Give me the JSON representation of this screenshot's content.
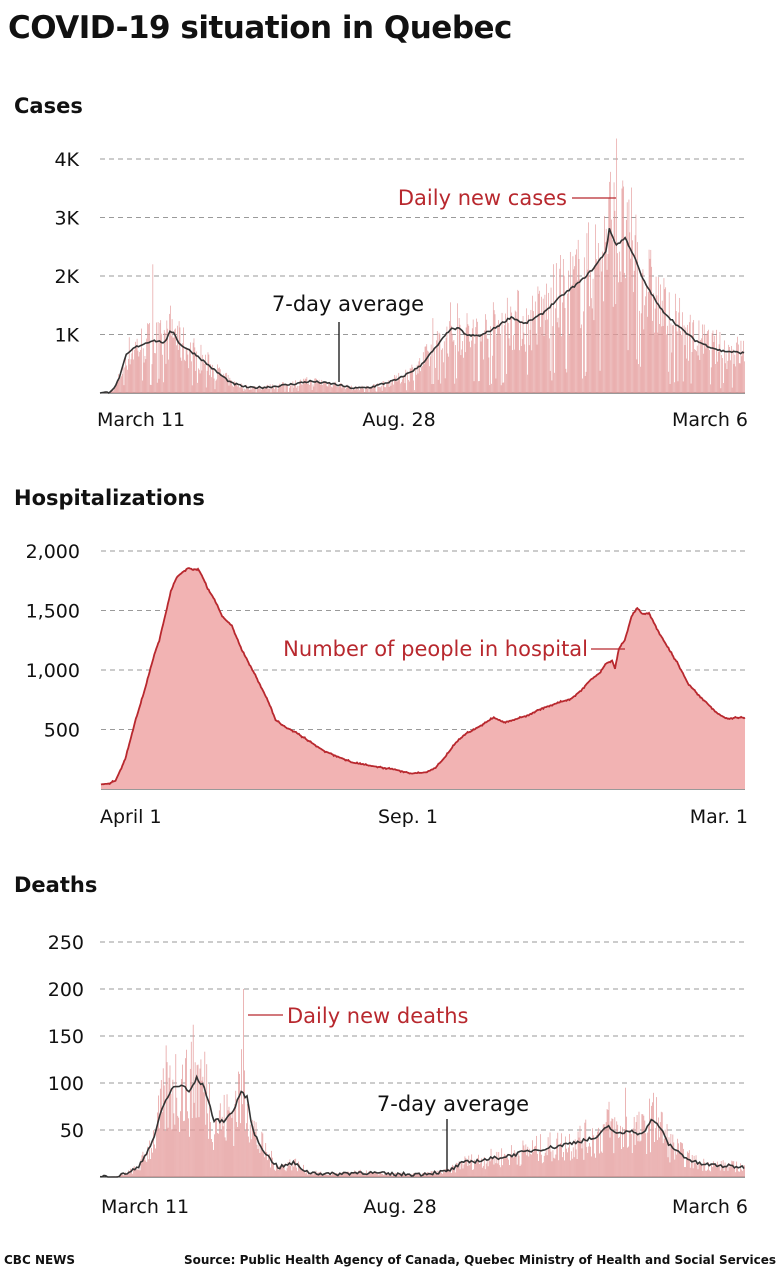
{
  "title": "COVID-19 situation in Quebec",
  "footer": {
    "brand": "CBC NEWS",
    "source": "Source: Public Health Agency of Canada, Quebec Ministry of Health and Social Services"
  },
  "colors": {
    "bar": "#e49a9a",
    "area_fill": "#f2b3b3",
    "area_line": "#b8282e",
    "avg_line": "#333333",
    "annotation_red": "#b8282e",
    "annotation_black": "#111111"
  },
  "chart_data": [
    {
      "id": "cases",
      "type": "bar",
      "title": "Cases",
      "x_tick_labels": [
        "March 11",
        "Aug. 28",
        "March 6"
      ],
      "y_tick_labels": [
        "1K",
        "2K",
        "3K",
        "4K"
      ],
      "y_ticks": [
        1000,
        2000,
        3000,
        4000
      ],
      "ylim": [
        0,
        4400
      ],
      "grid": true,
      "annotations": [
        "Daily new cases",
        "7-day average"
      ],
      "series": [
        {
          "kind": "bars",
          "name": "Daily new cases"
        },
        {
          "kind": "line",
          "name": "7-day average"
        }
      ],
      "avg_keyframes": [
        [
          0,
          0
        ],
        [
          10,
          10
        ],
        [
          18,
          120
        ],
        [
          24,
          350
        ],
        [
          30,
          650
        ],
        [
          40,
          780
        ],
        [
          50,
          840
        ],
        [
          60,
          900
        ],
        [
          75,
          860
        ],
        [
          80,
          1060
        ],
        [
          85,
          1030
        ],
        [
          90,
          850
        ],
        [
          110,
          650
        ],
        [
          130,
          400
        ],
        [
          150,
          170
        ],
        [
          170,
          90
        ],
        [
          190,
          100
        ],
        [
          215,
          140
        ],
        [
          240,
          200
        ],
        [
          265,
          160
        ],
        [
          290,
          80
        ],
        [
          310,
          100
        ],
        [
          340,
          230
        ],
        [
          365,
          450
        ],
        [
          385,
          800
        ],
        [
          400,
          1090
        ],
        [
          410,
          1100
        ],
        [
          420,
          980
        ],
        [
          435,
          980
        ],
        [
          450,
          1100
        ],
        [
          470,
          1300
        ],
        [
          485,
          1180
        ],
        [
          505,
          1350
        ],
        [
          525,
          1630
        ],
        [
          550,
          1920
        ],
        [
          565,
          2150
        ],
        [
          578,
          2420
        ],
        [
          582,
          2800
        ],
        [
          590,
          2530
        ],
        [
          600,
          2650
        ],
        [
          610,
          2350
        ],
        [
          620,
          1950
        ],
        [
          640,
          1450
        ],
        [
          660,
          1150
        ],
        [
          680,
          900
        ],
        [
          695,
          800
        ],
        [
          710,
          720
        ],
        [
          725,
          700
        ],
        [
          736,
          680
        ]
      ],
      "spikes": [
        [
          60,
          2200
        ],
        [
          590,
          4350
        ],
        [
          612,
          3050
        ],
        [
          380,
          1280
        ],
        [
          88,
          1150
        ]
      ]
    },
    {
      "id": "hospitalizations",
      "type": "area",
      "title": "Hospitalizations",
      "x_tick_labels": [
        "April 1",
        "Sep. 1",
        "Mar. 1"
      ],
      "y_tick_labels": [
        "500",
        "1,000",
        "1,500",
        "2,000"
      ],
      "y_ticks": [
        500,
        1000,
        1500,
        2000
      ],
      "ylim": [
        0,
        2050
      ],
      "grid": true,
      "annotations": [
        "Number of people in hospital"
      ],
      "series": [
        {
          "name": "Number of people in hospital",
          "keyframes": [
            [
              0,
              40
            ],
            [
              8,
              45
            ],
            [
              15,
              70
            ],
            [
              25,
              250
            ],
            [
              35,
              560
            ],
            [
              45,
              830
            ],
            [
              55,
              1130
            ],
            [
              60,
              1250
            ],
            [
              66,
              1450
            ],
            [
              72,
              1660
            ],
            [
              78,
              1780
            ],
            [
              84,
              1820
            ],
            [
              90,
              1860
            ],
            [
              95,
              1840
            ],
            [
              100,
              1850
            ],
            [
              105,
              1780
            ],
            [
              110,
              1680
            ],
            [
              115,
              1620
            ],
            [
              120,
              1540
            ],
            [
              125,
              1450
            ],
            [
              135,
              1370
            ],
            [
              145,
              1170
            ],
            [
              155,
              1020
            ],
            [
              165,
              860
            ],
            [
              175,
              690
            ],
            [
              180,
              580
            ],
            [
              190,
              520
            ],
            [
              200,
              480
            ],
            [
              215,
              400
            ],
            [
              230,
              320
            ],
            [
              245,
              270
            ],
            [
              260,
              220
            ],
            [
              275,
              200
            ],
            [
              290,
              180
            ],
            [
              305,
              160
            ],
            [
              320,
              130
            ],
            [
              335,
              140
            ],
            [
              345,
              180
            ],
            [
              355,
              270
            ],
            [
              365,
              380
            ],
            [
              375,
              460
            ],
            [
              385,
              500
            ],
            [
              395,
              550
            ],
            [
              405,
              600
            ],
            [
              415,
              560
            ],
            [
              425,
              580
            ],
            [
              440,
              620
            ],
            [
              455,
              680
            ],
            [
              470,
              720
            ],
            [
              485,
              760
            ],
            [
              495,
              830
            ],
            [
              505,
              920
            ],
            [
              515,
              980
            ],
            [
              520,
              1050
            ],
            [
              527,
              1080
            ],
            [
              530,
              1010
            ],
            [
              534,
              1180
            ],
            [
              540,
              1250
            ],
            [
              547,
              1450
            ],
            [
              553,
              1520
            ],
            [
              558,
              1470
            ],
            [
              565,
              1480
            ],
            [
              575,
              1320
            ],
            [
              585,
              1180
            ],
            [
              595,
              1050
            ],
            [
              605,
              890
            ],
            [
              615,
              800
            ],
            [
              625,
              720
            ],
            [
              635,
              640
            ],
            [
              645,
              590
            ],
            [
              655,
              600
            ],
            [
              664,
              600
            ]
          ]
        }
      ]
    },
    {
      "id": "deaths",
      "type": "bar",
      "title": "Deaths",
      "x_tick_labels": [
        "March 11",
        "Aug. 28",
        "March 6"
      ],
      "y_tick_labels": [
        "50",
        "100",
        "150",
        "200",
        "250"
      ],
      "y_ticks": [
        50,
        100,
        150,
        200,
        250
      ],
      "ylim": [
        0,
        265
      ],
      "grid": true,
      "annotations": [
        "Daily new deaths",
        "7-day average"
      ],
      "series": [
        {
          "kind": "bars",
          "name": "Daily new deaths"
        },
        {
          "kind": "line",
          "name": "7-day average"
        }
      ],
      "avg_keyframes": [
        [
          0,
          0
        ],
        [
          20,
          1
        ],
        [
          40,
          10
        ],
        [
          55,
          40
        ],
        [
          65,
          75
        ],
        [
          75,
          95
        ],
        [
          85,
          98
        ],
        [
          92,
          90
        ],
        [
          100,
          105
        ],
        [
          108,
          95
        ],
        [
          118,
          60
        ],
        [
          128,
          60
        ],
        [
          138,
          70
        ],
        [
          145,
          90
        ],
        [
          152,
          85
        ],
        [
          158,
          50
        ],
        [
          165,
          35
        ],
        [
          175,
          20
        ],
        [
          185,
          10
        ],
        [
          200,
          15
        ],
        [
          215,
          5
        ],
        [
          240,
          3
        ],
        [
          270,
          5
        ],
        [
          300,
          3
        ],
        [
          330,
          3
        ],
        [
          360,
          6
        ],
        [
          375,
          15
        ],
        [
          395,
          18
        ],
        [
          420,
          22
        ],
        [
          445,
          28
        ],
        [
          470,
          32
        ],
        [
          495,
          38
        ],
        [
          515,
          42
        ],
        [
          525,
          55
        ],
        [
          535,
          45
        ],
        [
          550,
          50
        ],
        [
          560,
          45
        ],
        [
          570,
          60
        ],
        [
          578,
          55
        ],
        [
          588,
          35
        ],
        [
          600,
          25
        ],
        [
          610,
          18
        ],
        [
          620,
          14
        ],
        [
          640,
          12
        ],
        [
          660,
          11
        ],
        [
          666,
          10
        ]
      ],
      "spikes": [
        [
          68,
          140
        ],
        [
          96,
          162
        ],
        [
          148,
          200
        ],
        [
          543,
          95
        ],
        [
          575,
          85
        ],
        [
          110,
          120
        ]
      ]
    }
  ]
}
